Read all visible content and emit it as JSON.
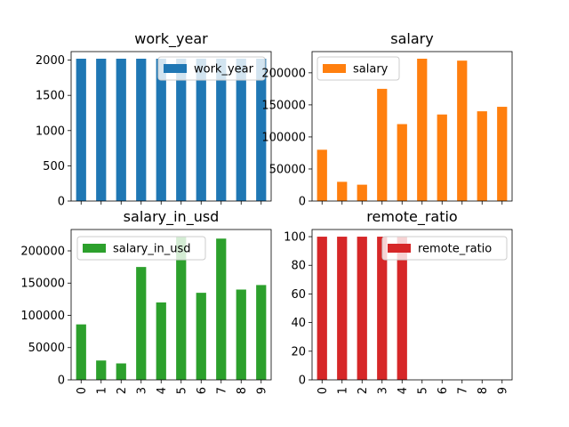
{
  "chart_data": [
    {
      "type": "bar",
      "title": "work_year",
      "color": "#1f77b4",
      "categories": [
        "0",
        "1",
        "2",
        "3",
        "4",
        "5",
        "6",
        "7",
        "8",
        "9"
      ],
      "series": [
        {
          "name": "work_year",
          "values": [
            2020,
            2020,
            2020,
            2020,
            2020,
            2020,
            2020,
            2020,
            2020,
            2020
          ]
        }
      ],
      "ylim": [
        0,
        2121
      ],
      "yticks": [
        0,
        500,
        1000,
        1500,
        2000
      ],
      "show_xticklabels": false,
      "legend": "top-right"
    },
    {
      "type": "bar",
      "title": "salary",
      "color": "#ff7f0e",
      "categories": [
        "0",
        "1",
        "2",
        "3",
        "4",
        "5",
        "6",
        "7",
        "8",
        "9"
      ],
      "series": [
        {
          "name": "salary",
          "values": [
            80000,
            30000,
            25500,
            175000,
            120000,
            222000,
            135000,
            219000,
            140000,
            147000
          ]
        }
      ],
      "ylim": [
        0,
        233100
      ],
      "yticks": [
        0,
        50000,
        100000,
        150000,
        200000
      ],
      "show_xticklabels": false,
      "legend": "top-left"
    },
    {
      "type": "bar",
      "title": "salary_in_usd",
      "color": "#2ca02c",
      "categories": [
        "0",
        "1",
        "2",
        "3",
        "4",
        "5",
        "6",
        "7",
        "8",
        "9"
      ],
      "series": [
        {
          "name": "salary_in_usd",
          "values": [
            86000,
            30000,
            25500,
            175000,
            120000,
            222000,
            135000,
            219000,
            140000,
            147000
          ]
        }
      ],
      "ylim": [
        0,
        233100
      ],
      "yticks": [
        0,
        50000,
        100000,
        150000,
        200000
      ],
      "show_xticklabels": true,
      "legend": "top-left"
    },
    {
      "type": "bar",
      "title": "remote_ratio",
      "color": "#d62728",
      "categories": [
        "0",
        "1",
        "2",
        "3",
        "4",
        "5",
        "6",
        "7",
        "8",
        "9"
      ],
      "series": [
        {
          "name": "remote_ratio",
          "values": [
            100,
            100,
            100,
            100,
            100,
            0,
            0,
            0,
            0,
            0
          ]
        }
      ],
      "ylim": [
        0,
        105
      ],
      "yticks": [
        0,
        20,
        40,
        60,
        80,
        100
      ],
      "show_xticklabels": true,
      "legend": "top-right"
    }
  ]
}
